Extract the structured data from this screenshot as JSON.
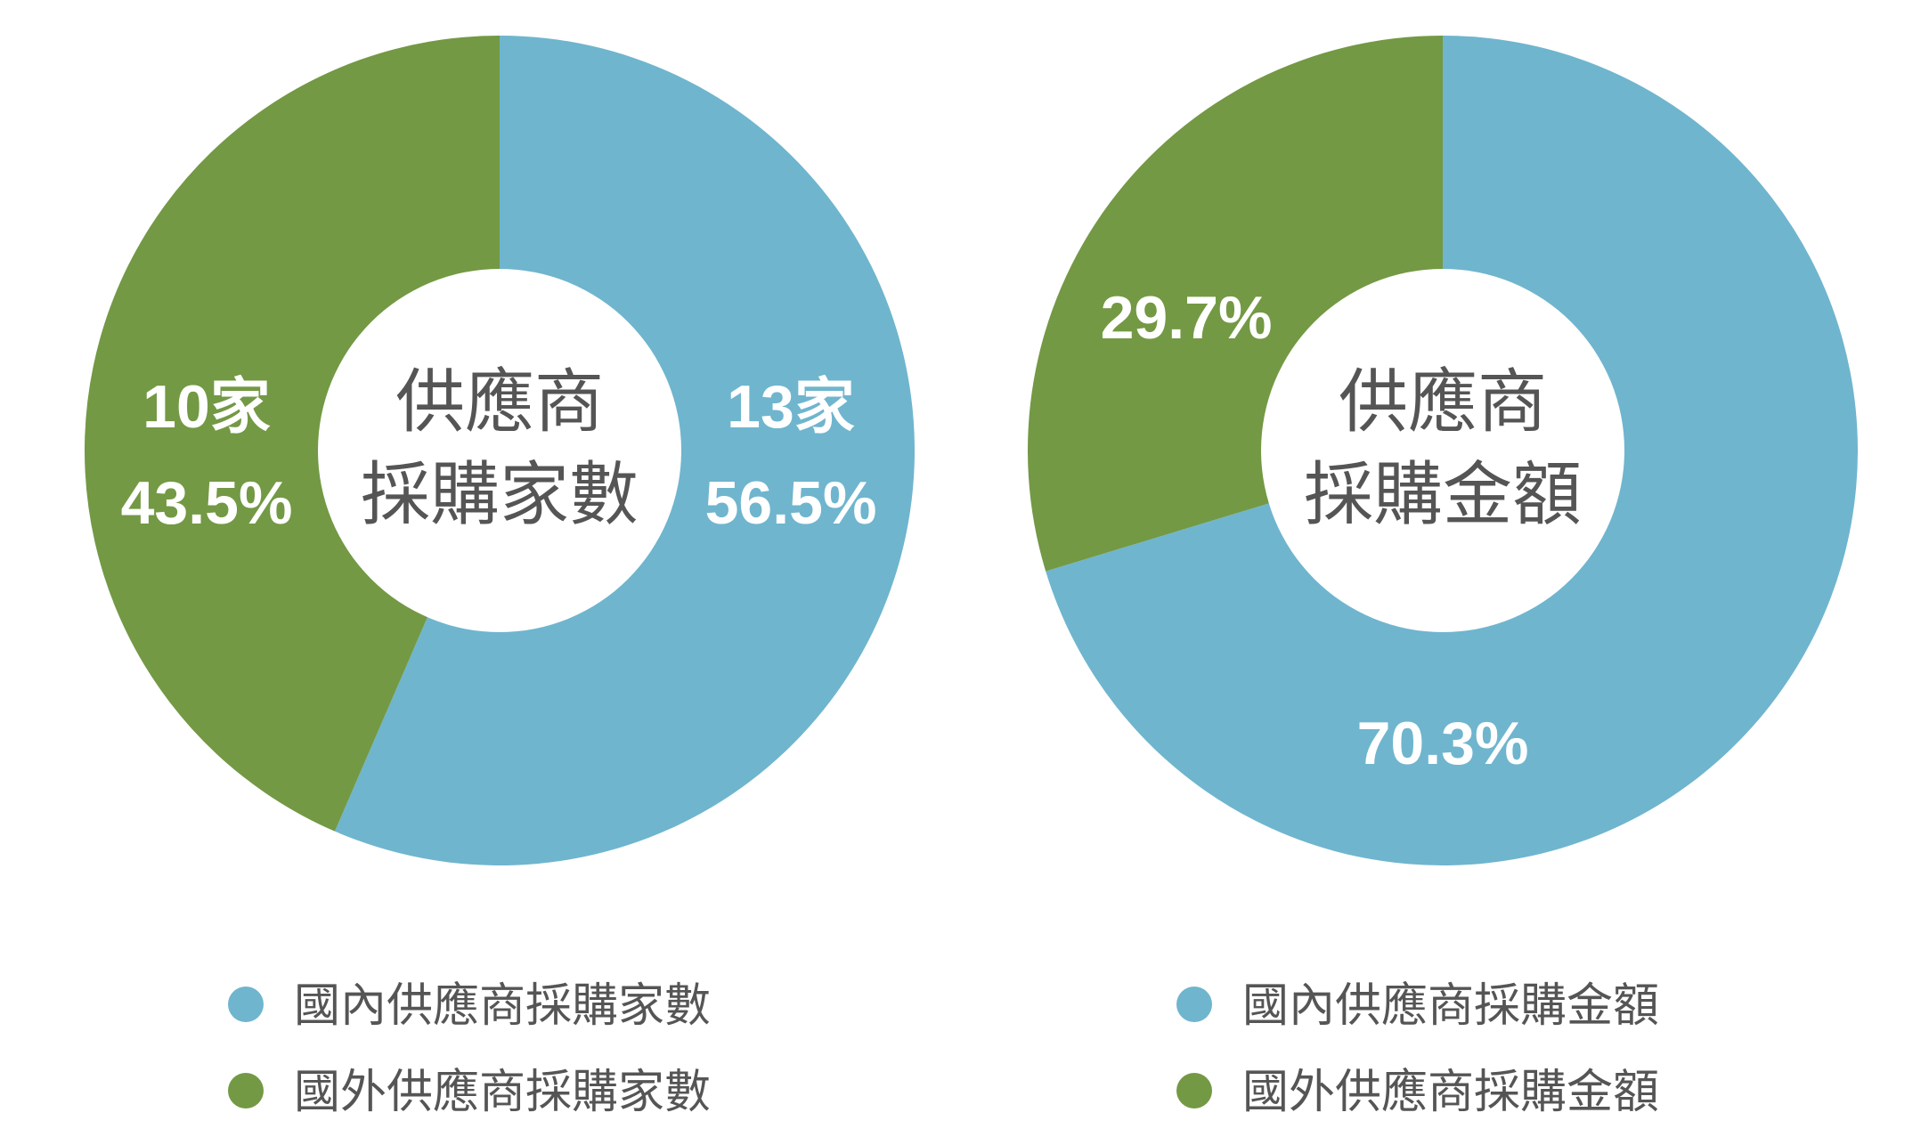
{
  "colors": {
    "domestic": "#6fb5ce",
    "foreign": "#739944",
    "center": "#ffffff",
    "text": "#555555"
  },
  "chart_data": [
    {
      "type": "pie",
      "donut": true,
      "center_title": [
        "供應商",
        "採購家數"
      ],
      "slices": [
        {
          "key": "domestic",
          "value": 56.5,
          "count": 13,
          "labels": [
            "13家",
            "56.5%"
          ]
        },
        {
          "key": "foreign",
          "value": 43.5,
          "count": 10,
          "labels": [
            "10家",
            "43.5%"
          ]
        }
      ],
      "legend": [
        "國內供應商採購家數",
        "國外供應商採購家數"
      ]
    },
    {
      "type": "pie",
      "donut": true,
      "center_title": [
        "供應商",
        "採購金額"
      ],
      "slices": [
        {
          "key": "domestic",
          "value": 70.3,
          "labels": [
            "70.3%"
          ]
        },
        {
          "key": "foreign",
          "value": 29.7,
          "labels": [
            "29.7%"
          ]
        }
      ],
      "legend": [
        "國內供應商採購金額",
        "國外供應商採購金額"
      ]
    }
  ]
}
